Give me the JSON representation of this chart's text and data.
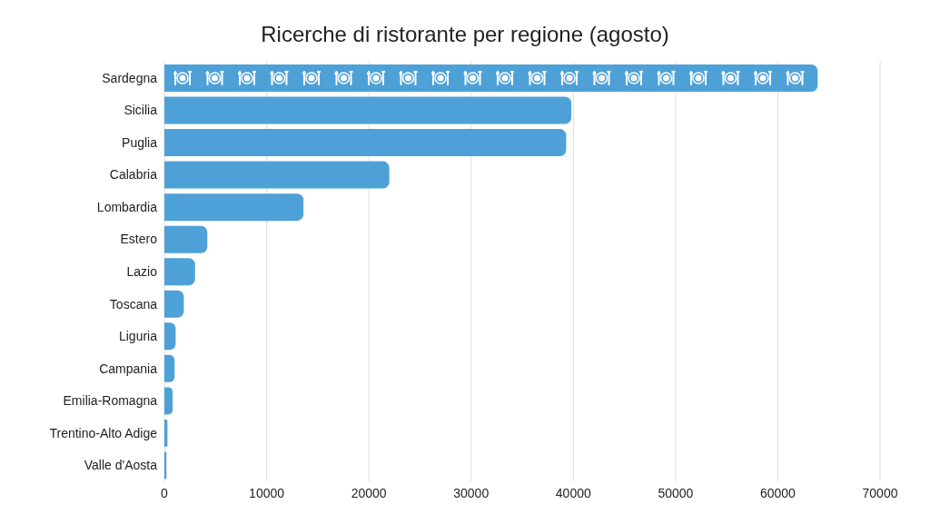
{
  "chart_data": {
    "type": "bar",
    "orientation": "horizontal",
    "title": "Ricerche di ristorante per regione (agosto)",
    "categories": [
      "Sardegna",
      "Sicilia",
      "Puglia",
      "Calabria",
      "Lombardia",
      "Estero",
      "Lazio",
      "Toscana",
      "Liguria",
      "Campania",
      "Emilia-Romagna",
      "Trentino-Alto Adige",
      "Valle d'Aosta"
    ],
    "values": [
      63900,
      39800,
      39300,
      22000,
      13600,
      4200,
      3000,
      1900,
      1100,
      1000,
      800,
      300,
      200
    ],
    "color": "#4ea1d7",
    "xlim": [
      0,
      70000
    ],
    "xticks": [
      0,
      10000,
      20000,
      30000,
      40000,
      50000,
      60000,
      70000
    ],
    "grid": "x"
  }
}
